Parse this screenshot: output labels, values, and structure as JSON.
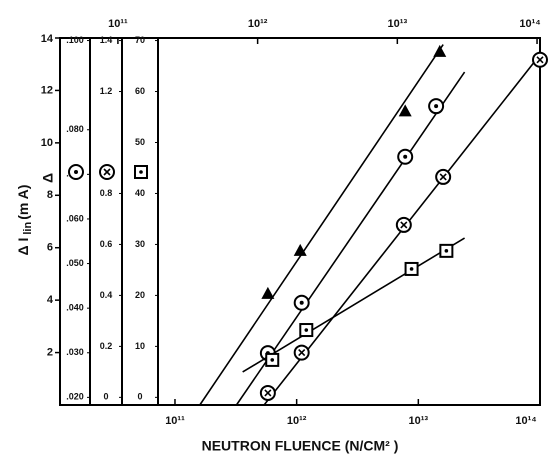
{
  "chart_data": {
    "type": "scatter",
    "x_label": "NEUTRON FLUENCE (N/CM² )",
    "y_label": {
      "main": "Δ I",
      "sub": "lin",
      "unit": "(m A)"
    },
    "main_axis_symbol": "Δ",
    "xscale": "log",
    "xlim": [
      11350000000.0,
      100000000000000.0
    ],
    "xticks": [
      {
        "value": 100000000000.0,
        "label": "10¹¹"
      },
      {
        "value": 1000000000000.0,
        "label": "10¹²"
      },
      {
        "value": 10000000000000.0,
        "label": "10¹³"
      },
      {
        "value": 100000000000000.0,
        "label": "10¹⁴"
      }
    ],
    "top_xlim": [
      38500000000.0,
      105000000000000.0
    ],
    "top_xticks": [
      {
        "value": 100000000000.0,
        "label": "10¹¹"
      },
      {
        "value": 1000000000000.0,
        "label": "10¹²"
      },
      {
        "value": 10000000000000.0,
        "label": "10¹³"
      },
      {
        "value": 100000000000000.0,
        "label": "10¹⁴"
      }
    ],
    "ylim": [
      0,
      14
    ],
    "yticks": [
      2,
      4,
      6,
      8,
      10,
      12,
      14
    ],
    "aux_axes": [
      {
        "marker": "circle-dot",
        "ylim": [
          0.01829,
          0.10057
        ],
        "yticks": [
          {
            "value": 0.1,
            "label": ".100"
          },
          {
            "value": 0.08,
            "label": ".080"
          },
          {
            "value": 0.07,
            "label": ".070"
          },
          {
            "value": 0.06,
            "label": ".060"
          },
          {
            "value": 0.05,
            "label": ".050"
          },
          {
            "value": 0.04,
            "label": ".040"
          },
          {
            "value": 0.03,
            "label": ".030"
          },
          {
            "value": 0.02,
            "label": ".020"
          }
        ]
      },
      {
        "marker": "circle-x",
        "ylim": [
          -0.03,
          1.41
        ],
        "yticks": [
          1.4,
          1.2,
          0.8,
          0.6,
          0.4,
          0.2,
          0
        ]
      },
      {
        "marker": "square-dot",
        "ylim": [
          -1.5,
          70.5
        ],
        "yticks": [
          70,
          60,
          50,
          40,
          30,
          20,
          10,
          0
        ]
      }
    ],
    "series": [
      {
        "marker": "triangle",
        "color": "#000000",
        "x": [
          580000000000.0,
          1070000000000.0,
          7800000000000.0,
          15000000000000.0
        ],
        "values": [
          4.24,
          5.88,
          11.2,
          13.47
        ],
        "fit_line": {
          "x": [
            160000000000.0,
            16000000000000.0
          ],
          "y": [
            0,
            13.75
          ]
        }
      },
      {
        "marker": "circle-dot",
        "color": "#000000",
        "x": [
          580000000000.0,
          1100000000000.0,
          7800000000000.0,
          14000000000000.0
        ],
        "values": [
          1.98,
          3.9,
          9.47,
          11.4
        ],
        "fit_line": {
          "x": [
            320000000000.0,
            24000000000000.0
          ],
          "y": [
            0,
            12.7
          ]
        }
      },
      {
        "marker": "circle-x",
        "color": "#000000",
        "x": [
          580000000000.0,
          1100000000000.0,
          7600000000000.0,
          16000000000000.0,
          100000000000000.0
        ],
        "values": [
          0.46,
          2.0,
          6.87,
          8.7,
          13.17
        ],
        "fit_line": {
          "x": [
            540000000000.0,
            100000000000000.0
          ],
          "y": [
            0,
            13.36
          ]
        }
      },
      {
        "marker": "square-dot",
        "color": "#000000",
        "x": [
          630000000000.0,
          1200000000000.0,
          8800000000000.0,
          17000000000000.0
        ],
        "values": [
          1.72,
          2.86,
          5.19,
          5.88
        ],
        "fit_line": {
          "x": [
            360000000000.0,
            24000000000000.0
          ],
          "y": [
            1.26,
            6.37
          ]
        }
      }
    ]
  }
}
